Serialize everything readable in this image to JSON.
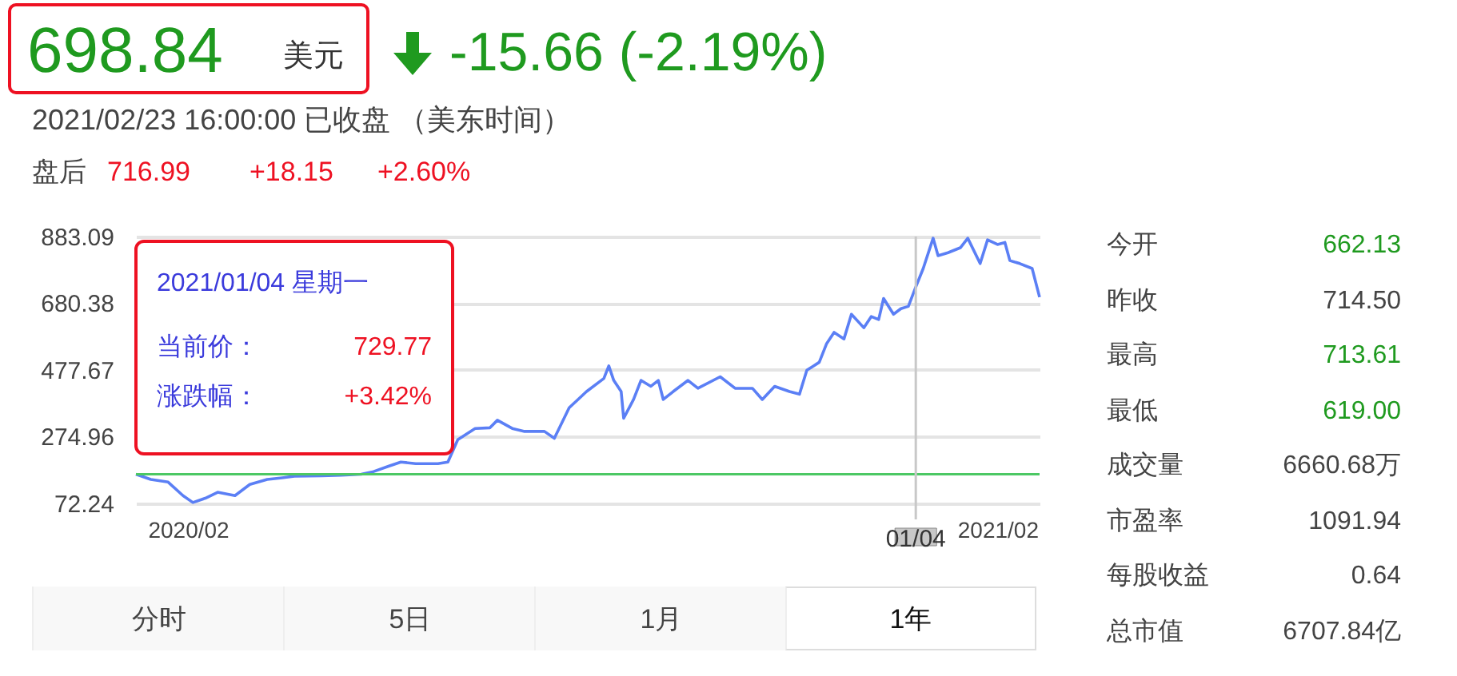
{
  "chart_data": {
    "type": "line",
    "annotations": [
      "698.84",
      "美元",
      "-15.66 (-2.19%)",
      "2021/02/23 16:00:00  已收盘  （美东时间）",
      "盘后",
      "716.99",
      "+18.15",
      "+2.60%",
      "今开",
      "662.13",
      "昨收",
      "714.50",
      "最高",
      "713.61",
      "最低",
      "619.00",
      "成交量",
      "6660.68万",
      "市盈率",
      "1091.94",
      "每股收益",
      "0.64",
      "总市值",
      "6707.84亿",
      "分时",
      "5日",
      "1月",
      "1年",
      "2021/01/04 星期一",
      "当前价：",
      "729.77",
      "涨跌幅：",
      "+3.42%"
    ],
    "x": [
      "2020-02-24",
      "2020-03-01",
      "2020-03-08",
      "2020-03-14",
      "2020-03-18",
      "2020-03-23",
      "2020-03-28",
      "2020-04-04",
      "2020-04-10",
      "2020-04-17",
      "2020-04-23",
      "2020-04-28",
      "2020-05-09",
      "2020-05-17",
      "2020-05-25",
      "2020-05-30",
      "2020-06-05",
      "2020-06-10",
      "2020-06-16",
      "2020-06-25",
      "2020-06-29",
      "2020-07-03",
      "2020-07-10",
      "2020-07-16",
      "2020-07-19",
      "2020-07-25",
      "2020-07-30",
      "2020-08-07",
      "2020-08-11",
      "2020-08-17",
      "2020-08-24",
      "2020-08-31",
      "2020-09-02",
      "2020-09-04",
      "2020-09-07",
      "2020-09-08",
      "2020-09-12",
      "2020-09-15",
      "2020-09-19",
      "2020-09-22",
      "2020-09-24",
      "2020-09-28",
      "2020-10-04",
      "2020-10-08",
      "2020-10-17",
      "2020-10-23",
      "2020-10-30",
      "2020-11-03",
      "2020-11-08",
      "2020-11-14",
      "2020-11-18",
      "2020-11-21",
      "2020-11-26",
      "2020-11-29",
      "2020-12-02",
      "2020-12-06",
      "2020-12-09",
      "2020-12-14",
      "2020-12-17",
      "2020-12-20",
      "2020-12-22",
      "2020-12-26",
      "2020-12-29",
      "2021-01-01",
      "2021-01-04",
      "2021-01-07",
      "2021-01-11",
      "2021-01-13",
      "2021-01-17",
      "2021-01-22",
      "2021-01-25",
      "2021-01-30",
      "2021-02-02",
      "2021-02-06",
      "2021-02-09",
      "2021-02-11",
      "2021-02-15",
      "2021-02-20",
      "2021-02-23"
    ],
    "series": [
      {
        "color": "#5b7ff5",
        "values": [
          161,
          145,
          137,
          96,
          75,
          88,
          106,
          96,
          130,
          145,
          150,
          155,
          156,
          158,
          161,
          169,
          185,
          198,
          193,
          193,
          198,
          266,
          300,
          302,
          325,
          300,
          291,
          291,
          270,
          363,
          412,
          452,
          490,
          446,
          412,
          331,
          388,
          446,
          428,
          446,
          388,
          412,
          446,
          422,
          457,
          422,
          422,
          388,
          428,
          412,
          404,
          477,
          501,
          558,
          592,
          572,
          647,
          606,
          640,
          631,
          695,
          647,
          664,
          671,
          729.77,
          786,
          878,
          825,
          834,
          849,
          878,
          801,
          873,
          859,
          865,
          810,
          801,
          786,
          698.84
        ]
      }
    ],
    "xlim": [
      "2020-02-24",
      "2021-02-23"
    ],
    "xticks": [
      {
        "value": "2020-03-16",
        "label": "2020/02"
      },
      {
        "value": "2021-02-06",
        "label": "2021/02"
      }
    ],
    "ylim": [
      72.24,
      883.09
    ],
    "yticks": [
      72.24,
      274.96,
      477.67,
      680.38,
      883.09
    ],
    "grid": "y",
    "ref_lines": [
      {
        "axis": "y",
        "value": 161,
        "color": "#4cc864"
      },
      {
        "axis": "x",
        "value": "2021-01-04",
        "label": "01/04",
        "color": "#c8c8c8"
      }
    ]
  }
}
